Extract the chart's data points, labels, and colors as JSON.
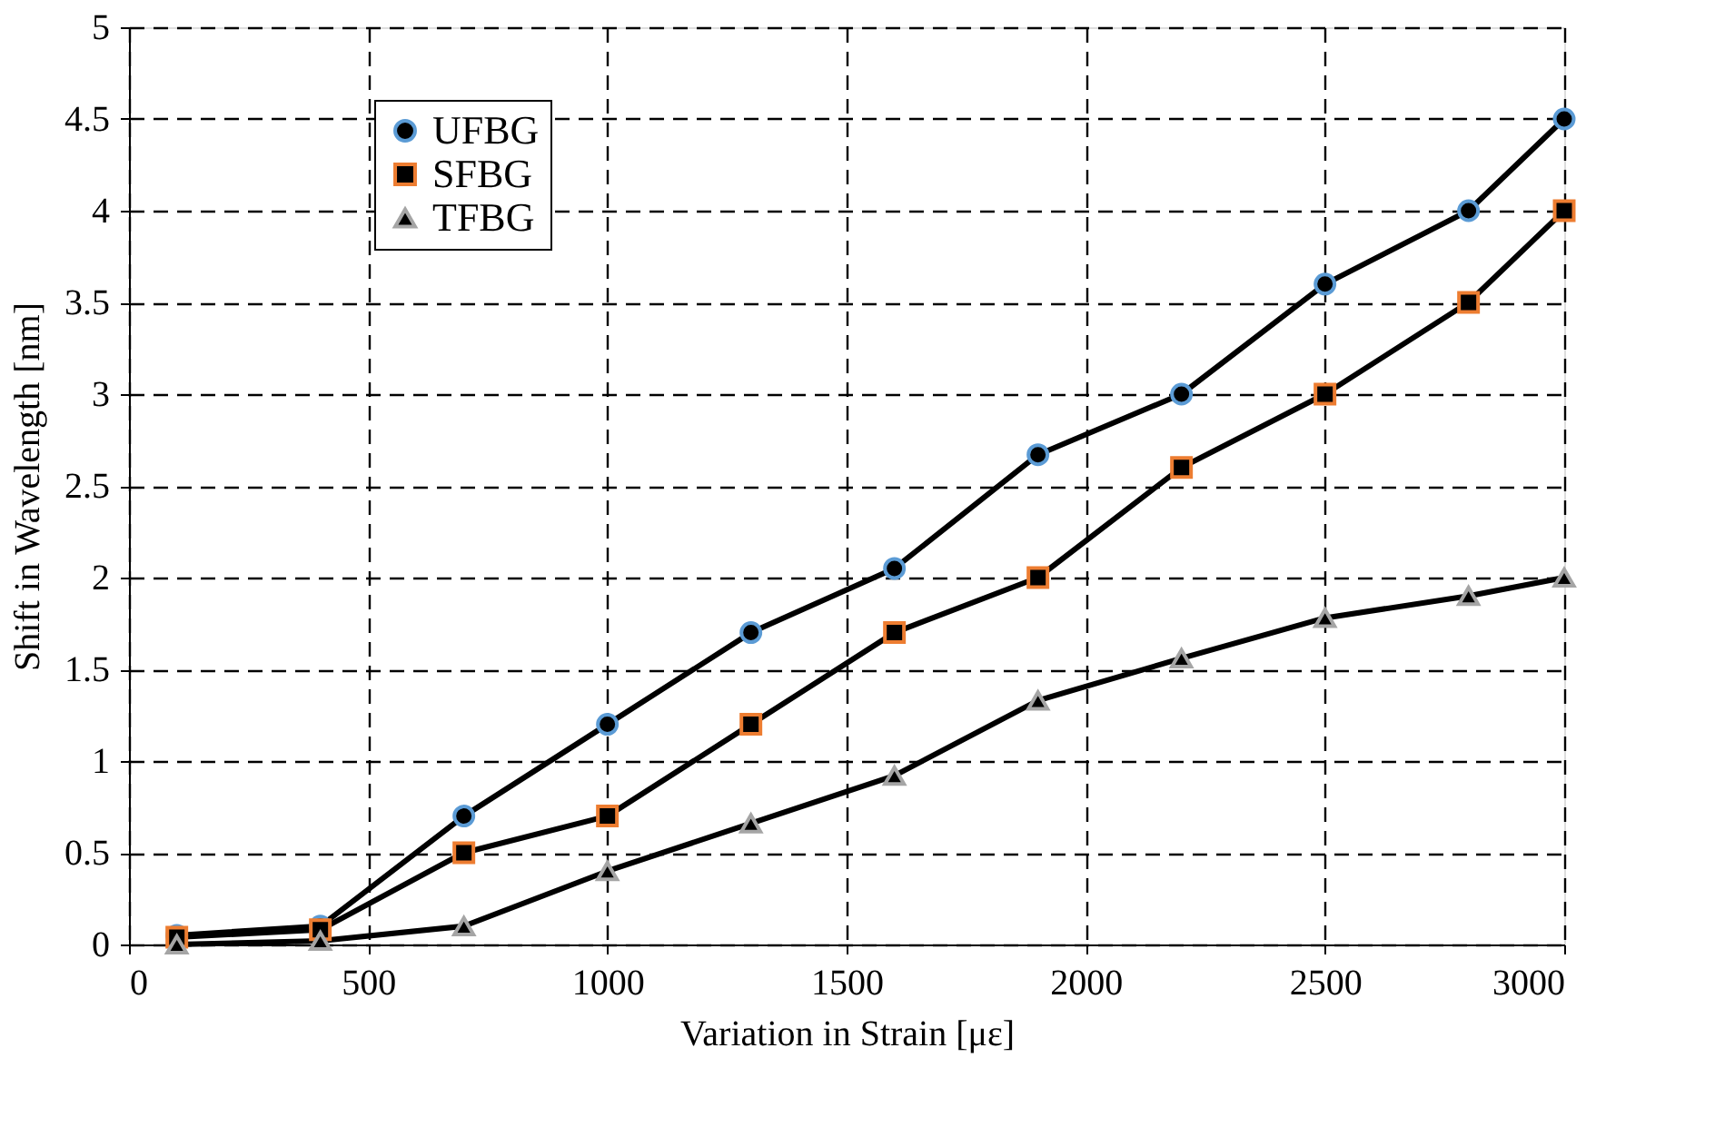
{
  "chart_data": {
    "type": "line",
    "xlabel": "Variation in Strain [με]",
    "ylabel": "Shift in Wavelength [nm]",
    "x": [
      100,
      400,
      700,
      1000,
      1300,
      1600,
      1900,
      2200,
      2500,
      2800,
      3000
    ],
    "series": [
      {
        "name": "UFBG",
        "color": "#5b9bd5",
        "marker": "circle",
        "values": [
          0.05,
          0.1,
          0.7,
          1.2,
          1.7,
          2.05,
          2.67,
          3.0,
          3.6,
          4.0,
          4.5
        ]
      },
      {
        "name": "SFBG",
        "color": "#ed7d31",
        "marker": "square",
        "values": [
          0.04,
          0.08,
          0.5,
          0.7,
          1.2,
          1.7,
          2.0,
          2.6,
          3.0,
          3.5,
          4.0
        ]
      },
      {
        "name": "TFBG",
        "color": "#a5a5a5",
        "marker": "triangle",
        "values": [
          0.0,
          0.02,
          0.1,
          0.4,
          0.66,
          0.92,
          1.33,
          1.56,
          1.78,
          1.9,
          2.0
        ]
      }
    ],
    "xlim": [
      0,
      3000
    ],
    "xticks": [
      0,
      500,
      1000,
      1500,
      2000,
      2500,
      3000
    ],
    "ylim": [
      0,
      5
    ],
    "yticks": [
      0,
      0.5,
      1,
      1.5,
      2,
      2.5,
      3,
      3.5,
      4,
      4.5,
      5
    ],
    "grid": true,
    "legend": "top left",
    "line_style": "solid"
  }
}
